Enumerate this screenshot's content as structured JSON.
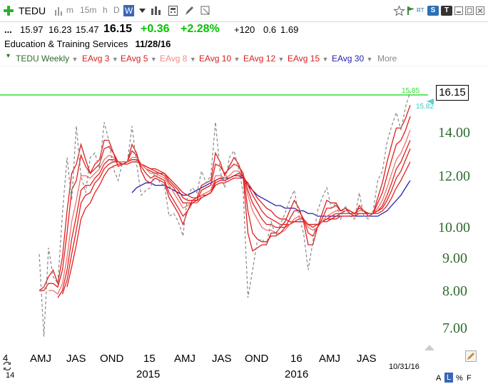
{
  "toolbar": {
    "symbol": "TEDU",
    "intervals": [
      "m",
      "15m",
      "h",
      "D",
      "W"
    ],
    "selected_interval": "W",
    "rt_label": "RT",
    "s_label": "S",
    "t_label": "T"
  },
  "quote": {
    "prefix": "...",
    "open": "15.97",
    "high": "16.23",
    "low": "15.47",
    "last": "16.15",
    "change": "+0.36",
    "change_pct": "+2.28%",
    "vol_change": "+120",
    "v1": "0.6",
    "v2": "1.69",
    "up_color": "#00c400"
  },
  "company": {
    "name": "Education & Training Services",
    "date": "11/28/16"
  },
  "studies": [
    {
      "label": "TEDU Weekly",
      "color": "#2e6b2e"
    },
    {
      "label": "EAvg 3",
      "color": "#d42020"
    },
    {
      "label": "EAvg 5",
      "color": "#d42020"
    },
    {
      "label": "EAvg 8",
      "color": "#f08a8a"
    },
    {
      "label": "EAvg 10",
      "color": "#d42020"
    },
    {
      "label": "EAvg 12",
      "color": "#d42020"
    },
    {
      "label": "EAvg 15",
      "color": "#d42020"
    },
    {
      "label": "EAvg 30",
      "color": "#2222aa"
    },
    {
      "label": "More",
      "color": "#888888"
    }
  ],
  "chart_data": {
    "type": "line",
    "title": "TEDU Weekly",
    "y_scale": "log",
    "y_ticks": [
      "7.00",
      "8.00",
      "9.00",
      "10.00",
      "12.00",
      "14.00"
    ],
    "y_tick_values": [
      7,
      8,
      9,
      10,
      12,
      14
    ],
    "ylim": [
      6.5,
      16.6
    ],
    "last_price_label": "16.15",
    "reference_line": {
      "value": "15.85",
      "color": "#33dd33"
    },
    "marker_label": {
      "value": "15.82",
      "color": "#33cccc"
    },
    "x_tick_labels": [
      "AMJ",
      "JAS",
      "OND",
      "15",
      "AMJ",
      "JAS",
      "OND",
      "16",
      "AMJ",
      "JAS"
    ],
    "x_tick_weeks": [
      10,
      23,
      36,
      48,
      60,
      74,
      88,
      100,
      112,
      125
    ],
    "x_year_labels": [
      "2015",
      "2016"
    ],
    "x_year_weeks": [
      48,
      100
    ],
    "x_edge_labels": [
      "4",
      "14"
    ],
    "date_label": "10/31/16",
    "bottom_right": [
      "A",
      "L",
      "%",
      "F"
    ],
    "series": [
      {
        "name": "TEDU Weekly",
        "style": "dashed",
        "color": "#888888",
        "values": [
          9.1,
          6.8,
          9.3,
          8.4,
          8.2,
          10.5,
          12.8,
          11.0,
          14.3,
          12.0,
          11.3,
          12.8,
          13.0,
          12.3,
          14.5,
          13.6,
          12.3,
          11.8,
          12.6,
          12.6,
          14.3,
          12.5,
          11.2,
          11.4,
          11.5,
          12.2,
          11.7,
          11.6,
          10.4,
          10.5,
          10.2,
          9.7,
          11.2,
          11.5,
          11.3,
          12.2,
          11.7,
          12.0,
          14.5,
          12.2,
          11.5,
          12.8,
          13.1,
          12.3,
          11.3,
          7.8,
          8.6,
          9.5,
          9.6,
          9.4,
          10.2,
          9.7,
          10.1,
          10.5,
          11.0,
          11.4,
          10.4,
          9.8,
          8.6,
          9.5,
          10.6,
          11.1,
          11.5,
          10.7,
          10.9,
          10.3,
          10.8,
          10.4,
          10.3,
          11.3,
          10.4,
          10.3,
          10.6,
          11.8,
          12.2,
          13.5,
          14.3,
          15.0,
          14.1,
          15.3,
          16.15
        ]
      },
      {
        "name": "EAvg 3",
        "color": "#e02020",
        "values": [
          8.0,
          8.1,
          8.4,
          8.6,
          8.2,
          9.0,
          10.6,
          12.1,
          12.5,
          13.4,
          12.7,
          12.1,
          12.5,
          12.7,
          13.6,
          13.6,
          13.0,
          12.4,
          12.5,
          12.6,
          13.4,
          13.0,
          12.2,
          11.8,
          11.7,
          11.9,
          11.8,
          11.7,
          11.1,
          10.8,
          10.5,
          10.1,
          10.6,
          11.0,
          11.1,
          11.6,
          11.7,
          11.8,
          13.0,
          12.6,
          12.0,
          12.4,
          12.8,
          12.5,
          11.9,
          9.8,
          9.2,
          9.3,
          9.4,
          9.4,
          9.8,
          9.8,
          10.0,
          10.2,
          10.6,
          11.0,
          10.7,
          10.2,
          9.4,
          9.4,
          10.0,
          10.5,
          11.0,
          10.9,
          10.9,
          10.6,
          10.7,
          10.5,
          10.4,
          10.8,
          10.6,
          10.4,
          10.5,
          11.1,
          11.7,
          12.6,
          13.4,
          14.2,
          14.2,
          14.7,
          15.4
        ]
      },
      {
        "name": "EAvg 5",
        "color": "#e02020",
        "values": [
          8.0,
          8.0,
          8.2,
          8.2,
          8.1,
          8.6,
          9.8,
          11.4,
          11.8,
          12.9,
          12.4,
          12.1,
          12.3,
          12.5,
          13.2,
          13.3,
          13.0,
          12.6,
          12.5,
          12.6,
          13.1,
          12.9,
          12.4,
          12.1,
          11.9,
          12.0,
          11.9,
          11.8,
          11.3,
          11.0,
          10.7,
          10.4,
          10.6,
          10.9,
          11.0,
          11.4,
          11.5,
          11.6,
          12.5,
          12.4,
          12.1,
          12.3,
          12.5,
          12.4,
          12.1,
          10.6,
          9.8,
          9.6,
          9.5,
          9.5,
          9.7,
          9.7,
          9.8,
          10.0,
          10.3,
          10.6,
          10.6,
          10.3,
          9.8,
          9.7,
          10.0,
          10.3,
          10.7,
          10.7,
          10.8,
          10.6,
          10.7,
          10.6,
          10.5,
          10.7,
          10.6,
          10.5,
          10.5,
          10.9,
          11.3,
          12.0,
          12.7,
          13.4,
          13.6,
          14.1,
          14.8
        ]
      },
      {
        "name": "EAvg 8",
        "color": "#f07070",
        "values": [
          null,
          null,
          8.0,
          8.0,
          7.9,
          8.2,
          9.0,
          10.2,
          11.0,
          12.0,
          12.0,
          11.9,
          12.1,
          12.3,
          12.7,
          12.9,
          12.8,
          12.6,
          12.6,
          12.6,
          12.8,
          12.8,
          12.5,
          12.3,
          12.1,
          12.1,
          12.0,
          11.9,
          11.6,
          11.3,
          11.0,
          10.7,
          10.8,
          10.9,
          10.9,
          11.2,
          11.3,
          11.4,
          12.0,
          12.0,
          11.9,
          12.0,
          12.2,
          12.2,
          12.0,
          11.2,
          10.6,
          10.3,
          10.0,
          9.9,
          9.9,
          9.8,
          9.8,
          9.9,
          10.1,
          10.3,
          10.4,
          10.3,
          10.0,
          9.9,
          10.0,
          10.2,
          10.4,
          10.5,
          10.6,
          10.6,
          10.6,
          10.6,
          10.5,
          10.6,
          10.6,
          10.5,
          10.5,
          10.7,
          11.0,
          11.5,
          12.1,
          12.7,
          13.0,
          13.5,
          14.1
        ]
      },
      {
        "name": "EAvg 10",
        "color": "#e02020",
        "values": [
          null,
          null,
          null,
          null,
          7.8,
          8.0,
          8.6,
          9.6,
          10.4,
          11.4,
          11.6,
          11.6,
          11.9,
          12.1,
          12.5,
          12.7,
          12.7,
          12.6,
          12.6,
          12.6,
          12.7,
          12.7,
          12.5,
          12.3,
          12.2,
          12.1,
          12.1,
          12.0,
          11.7,
          11.5,
          11.2,
          10.9,
          10.9,
          10.9,
          10.9,
          11.1,
          11.2,
          11.3,
          11.8,
          11.9,
          11.8,
          11.9,
          12.0,
          12.1,
          12.0,
          11.4,
          10.9,
          10.6,
          10.3,
          10.1,
          10.1,
          10.0,
          10.0,
          10.0,
          10.1,
          10.2,
          10.3,
          10.3,
          10.1,
          10.0,
          10.1,
          10.2,
          10.3,
          10.4,
          10.5,
          10.5,
          10.6,
          10.6,
          10.5,
          10.6,
          10.6,
          10.5,
          10.5,
          10.6,
          10.8,
          11.2,
          11.7,
          12.3,
          12.6,
          13.1,
          13.6
        ]
      },
      {
        "name": "EAvg 12",
        "color": "#e02020",
        "values": [
          null,
          null,
          null,
          null,
          null,
          7.9,
          8.3,
          9.1,
          9.9,
          10.9,
          11.2,
          11.3,
          11.7,
          11.9,
          12.3,
          12.5,
          12.6,
          12.6,
          12.6,
          12.6,
          12.7,
          12.7,
          12.5,
          12.4,
          12.3,
          12.2,
          12.1,
          12.1,
          11.8,
          11.6,
          11.4,
          11.1,
          11.0,
          11.0,
          11.0,
          11.1,
          11.2,
          11.3,
          11.7,
          11.8,
          11.8,
          11.9,
          12.0,
          12.0,
          12.0,
          11.6,
          11.2,
          10.9,
          10.6,
          10.4,
          10.3,
          10.2,
          10.1,
          10.1,
          10.1,
          10.2,
          10.2,
          10.2,
          10.1,
          10.1,
          10.1,
          10.2,
          10.3,
          10.3,
          10.4,
          10.5,
          10.5,
          10.5,
          10.5,
          10.5,
          10.5,
          10.5,
          10.5,
          10.6,
          10.7,
          11.0,
          11.4,
          11.9,
          12.2,
          12.7,
          13.2
        ]
      },
      {
        "name": "EAvg 15",
        "color": "#e02020",
        "values": [
          null,
          null,
          null,
          null,
          null,
          null,
          8.1,
          8.7,
          9.4,
          10.3,
          10.7,
          10.9,
          11.3,
          11.6,
          12.0,
          12.3,
          12.4,
          12.5,
          12.5,
          12.5,
          12.6,
          12.6,
          12.5,
          12.4,
          12.3,
          12.3,
          12.2,
          12.1,
          11.9,
          11.7,
          11.5,
          11.3,
          11.2,
          11.1,
          11.1,
          11.2,
          11.2,
          11.3,
          11.6,
          11.7,
          11.7,
          11.8,
          11.9,
          11.9,
          11.9,
          11.7,
          11.4,
          11.1,
          10.9,
          10.7,
          10.6,
          10.4,
          10.3,
          10.3,
          10.2,
          10.2,
          10.2,
          10.2,
          10.1,
          10.1,
          10.1,
          10.2,
          10.2,
          10.3,
          10.3,
          10.4,
          10.4,
          10.4,
          10.4,
          10.5,
          10.5,
          10.5,
          10.5,
          10.5,
          10.6,
          10.8,
          11.1,
          11.5,
          11.8,
          12.2,
          12.6
        ]
      },
      {
        "name": "EAvg 30",
        "color": "#2020b0",
        "values": [
          null,
          null,
          null,
          null,
          null,
          null,
          null,
          null,
          null,
          null,
          null,
          null,
          null,
          null,
          null,
          null,
          null,
          null,
          null,
          null,
          11.3,
          11.5,
          11.6,
          11.7,
          11.7,
          11.6,
          11.6,
          11.6,
          11.5,
          11.4,
          11.3,
          11.2,
          11.2,
          11.3,
          11.4,
          11.5,
          11.6,
          11.7,
          11.8,
          11.9,
          11.9,
          11.9,
          12.0,
          12.0,
          11.9,
          11.6,
          11.4,
          11.2,
          11.1,
          11.0,
          10.9,
          10.8,
          10.8,
          10.7,
          10.7,
          10.7,
          10.6,
          10.6,
          10.5,
          10.5,
          10.4,
          10.4,
          10.4,
          10.4,
          10.4,
          10.4,
          10.4,
          10.4,
          10.4,
          10.4,
          10.4,
          10.4,
          10.4,
          10.4,
          10.5,
          10.6,
          10.8,
          11.0,
          11.2,
          11.5,
          11.8
        ]
      }
    ]
  }
}
